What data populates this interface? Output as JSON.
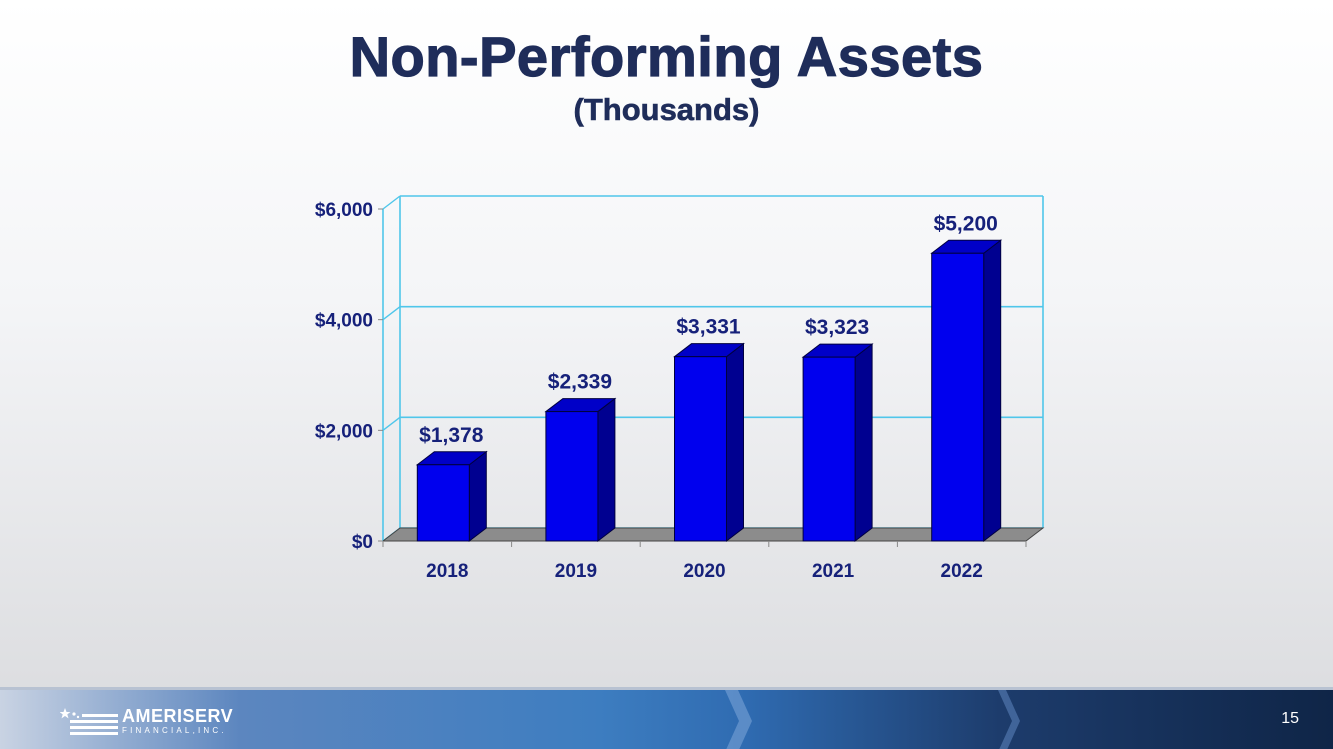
{
  "slide": {
    "title": "Non-Performing Assets",
    "subtitle": "(Thousands)"
  },
  "chart_data": {
    "type": "bar",
    "title": "",
    "xlabel": "",
    "ylabel": "",
    "categories": [
      "2018",
      "2019",
      "2020",
      "2021",
      "2022"
    ],
    "values": [
      1378,
      2339,
      3331,
      3323,
      5200
    ],
    "data_labels": [
      "$1,378",
      "$2,339",
      "$3,331",
      "$3,323",
      "$5,200"
    ],
    "ylim": [
      0,
      6000
    ],
    "yticks": [
      0,
      2000,
      4000,
      6000
    ],
    "ytick_labels": [
      "$0",
      "$2,000",
      "$4,000",
      "$6,000"
    ],
    "grid": true,
    "style": "3d",
    "colors": {
      "bar_front": "#0000ee",
      "bar_top": "#0000c8",
      "bar_side": "#000090",
      "gridline": "#4fc6ea",
      "floor": "#8c8c8c",
      "label": "#16217a"
    }
  },
  "footer": {
    "logo_name": "AMERISERV",
    "logo_sub": "FINANCIAL,INC.",
    "page_number": "15"
  }
}
